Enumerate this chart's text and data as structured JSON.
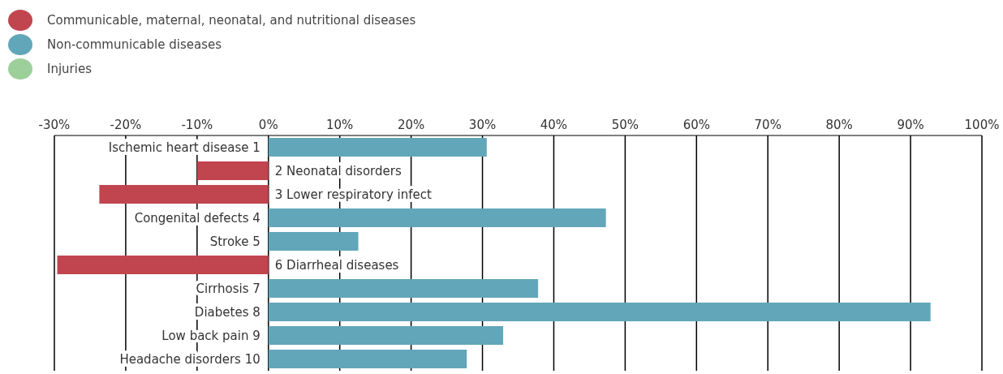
{
  "chart_data": {
    "type": "bar",
    "orientation": "horizontal",
    "stacked": true,
    "categories": [
      "Ischemic heart disease 1",
      "2 Neonatal disorders",
      "3 Lower respiratory infect",
      "Congenital defects 4",
      "Stroke 5",
      "6 Diarrheal diseases",
      "Cirrhosis 7",
      "Diabetes 8",
      "Low back pain 9",
      "Headache disorders 10"
    ],
    "series": [
      {
        "name": "Communicable, maternal, neonatal, and nutritional diseases",
        "color": "#c1454f",
        "values": [
          null,
          -10,
          -23.7,
          null,
          null,
          -29.6,
          null,
          null,
          null,
          null
        ]
      },
      {
        "name": "Non-communicable diseases",
        "color": "#62a6b9",
        "values": [
          30.6,
          null,
          null,
          47.3,
          12.6,
          null,
          37.8,
          92.8,
          32.9,
          27.8
        ]
      },
      {
        "name": "Injuries",
        "color": "#9dcf9b",
        "values": [
          null,
          null,
          null,
          null,
          null,
          null,
          null,
          null,
          null,
          null
        ]
      }
    ],
    "xlim": [
      -30,
      100
    ],
    "xticks": [
      {
        "value": -30,
        "label": "-30%"
      },
      {
        "value": -20,
        "label": "-20%"
      },
      {
        "value": -10,
        "label": "-10%"
      },
      {
        "value": 0,
        "label": "0%"
      },
      {
        "value": 10,
        "label": "10%"
      },
      {
        "value": 20,
        "label": "20%"
      },
      {
        "value": 30,
        "label": "30%"
      },
      {
        "value": 40,
        "label": "40%"
      },
      {
        "value": 50,
        "label": "50%"
      },
      {
        "value": 60,
        "label": "60%"
      },
      {
        "value": 70,
        "label": "70%"
      },
      {
        "value": 80,
        "label": "80%"
      },
      {
        "value": 90,
        "label": "90%"
      },
      {
        "value": 100,
        "label": "100%"
      }
    ],
    "grid": "x",
    "legend": "top left"
  }
}
